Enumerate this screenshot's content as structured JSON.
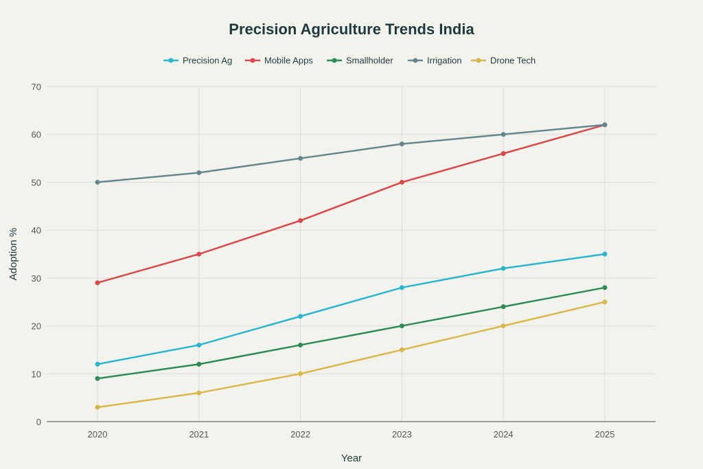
{
  "chart_data": {
    "type": "line",
    "title": "Precision Agriculture Trends India",
    "xlabel": "Year",
    "ylabel": "Adoption %",
    "categories": [
      "2020",
      "2021",
      "2022",
      "2023",
      "2024",
      "2025"
    ],
    "ylim": [
      0,
      70
    ],
    "yticks": [
      0,
      10,
      20,
      30,
      40,
      50,
      60,
      70
    ],
    "grid": true,
    "legend_position": "top-center",
    "series": [
      {
        "name": "Precision Ag",
        "color": "#2bb5cf",
        "values": [
          12,
          16,
          22,
          28,
          32,
          35
        ]
      },
      {
        "name": "Mobile Apps",
        "color": "#d9484a",
        "values": [
          29,
          35,
          42,
          50,
          56,
          62
        ]
      },
      {
        "name": "Smallholder",
        "color": "#2e8b57",
        "values": [
          9,
          12,
          16,
          20,
          24,
          28
        ]
      },
      {
        "name": "Irrigation",
        "color": "#66878f",
        "values": [
          50,
          52,
          55,
          58,
          60,
          62
        ]
      },
      {
        "name": "Drone Tech",
        "color": "#d8b84a",
        "values": [
          3,
          6,
          10,
          15,
          20,
          25
        ]
      }
    ]
  }
}
